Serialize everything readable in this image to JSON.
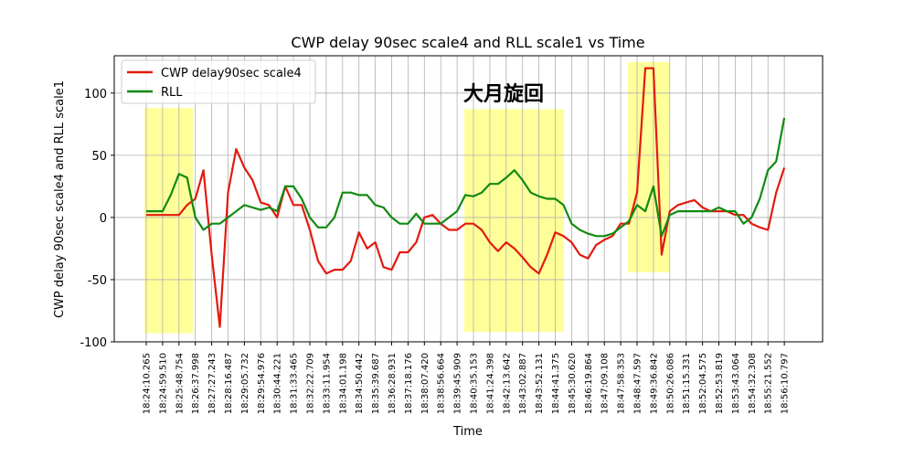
{
  "chart_data": {
    "type": "line",
    "title": "CWP delay 90sec scale4 and RLL scale1 vs Time",
    "x_label": "Time",
    "y_label": "CWP delay 90sec scale4 and RLL scale1",
    "x": [
      "18:24:10.265",
      "18:24:34.888",
      "18:24:59.510",
      "18:25:24.132",
      "18:25:48.754",
      "18:26:13.376",
      "18:26:37.998",
      "18:27:02.621",
      "18:27:27.243",
      "18:27:51.865",
      "18:28:16.487",
      "18:28:41.110",
      "18:29:05.732",
      "18:29:30.354",
      "18:29:54.976",
      "18:30:19.599",
      "18:30:44.221",
      "18:31:08.843",
      "18:31:33.465",
      "18:31:58.087",
      "18:32:22.709",
      "18:32:47.332",
      "18:33:11.954",
      "18:33:36.576",
      "18:34:01.198",
      "18:34:25.820",
      "18:34:50.442",
      "18:35:15.065",
      "18:35:39.687",
      "18:36:04.309",
      "18:36:28.931",
      "18:36:53.554",
      "18:37:18.176",
      "18:37:42.798",
      "18:38:07.420",
      "18:38:32.042",
      "18:38:56.664",
      "18:39:21.287",
      "18:39:45.909",
      "18:40:10.531",
      "18:40:35.153",
      "18:40:59.776",
      "18:41:24.398",
      "18:41:49.020",
      "18:42:13.642",
      "18:42:38.265",
      "18:43:02.887",
      "18:43:27.509",
      "18:43:52.131",
      "18:44:16.753",
      "18:44:41.375",
      "18:45:05.998",
      "18:45:30.620",
      "18:45:55.242",
      "18:46:19.864",
      "18:46:44.486",
      "18:47:09.108",
      "18:47:33.731",
      "18:47:58.353",
      "18:48:22.975",
      "18:48:47.597",
      "18:49:12.220",
      "18:49:36.842",
      "18:50:01.464",
      "18:50:26.086",
      "18:50:50.709",
      "18:51:15.331",
      "18:51:39.953",
      "18:52:04.575",
      "18:52:29.197",
      "18:52:53.819",
      "18:53:18.442",
      "18:53:43.064",
      "18:54:07.686",
      "18:54:32.308",
      "18:54:56.930",
      "18:55:21.552",
      "18:55:46.175",
      "18:56:10.797"
    ],
    "series": [
      {
        "name": "CWP delay90sec scale4",
        "color": "#e31a0e",
        "values": [
          2,
          2,
          2,
          2,
          2,
          10,
          15,
          38,
          -30,
          -88,
          20,
          55,
          40,
          30,
          12,
          10,
          0,
          25,
          10,
          10,
          -10,
          -35,
          -45,
          -42,
          -42,
          -35,
          -12,
          -25,
          -20,
          -40,
          -42,
          -28,
          -28,
          -20,
          0,
          2,
          -5,
          -10,
          -10,
          -5,
          -5,
          -10,
          -20,
          -27,
          -20,
          -25,
          -32,
          -40,
          -45,
          -30,
          -12,
          -15,
          -20,
          -30,
          -33,
          -22,
          -18,
          -15,
          -5,
          -5,
          20,
          120,
          120,
          -30,
          5,
          10,
          12,
          14,
          8,
          5,
          5,
          5,
          2,
          2,
          -5,
          -8,
          -10,
          20,
          40
        ]
      },
      {
        "name": "RLL",
        "color": "#118a11",
        "values": [
          5,
          5,
          5,
          18,
          35,
          32,
          0,
          -10,
          -5,
          -5,
          0,
          5,
          10,
          8,
          6,
          8,
          5,
          25,
          25,
          15,
          0,
          -8,
          -8,
          0,
          20,
          20,
          18,
          18,
          10,
          8,
          0,
          -5,
          -5,
          3,
          -5,
          -5,
          -5,
          0,
          5,
          18,
          17,
          20,
          27,
          27,
          32,
          38,
          30,
          20,
          17,
          15,
          15,
          10,
          -5,
          -10,
          -13,
          -15,
          -15,
          -13,
          -8,
          -3,
          10,
          5,
          25,
          -15,
          2,
          5,
          5,
          5,
          5,
          5,
          8,
          5,
          5,
          -5,
          0,
          15,
          38,
          45,
          80
        ]
      }
    ],
    "xlim": [
      "18:22:34.000",
      "18:58:06.000"
    ],
    "xticks": [
      "18:24:10.265",
      "18:24:59.510",
      "18:25:48.754",
      "18:26:37.998",
      "18:27:27.243",
      "18:28:16.487",
      "18:29:05.732",
      "18:29:54.976",
      "18:30:44.221",
      "18:31:33.465",
      "18:32:22.709",
      "18:33:11.954",
      "18:34:01.198",
      "18:34:50.442",
      "18:35:39.687",
      "18:36:28.931",
      "18:37:18.176",
      "18:38:07.420",
      "18:38:56.664",
      "18:39:45.909",
      "18:40:35.153",
      "18:41:24.398",
      "18:42:13.642",
      "18:43:02.887",
      "18:43:52.131",
      "18:44:41.375",
      "18:45:30.620",
      "18:46:19.864",
      "18:47:09.108",
      "18:47:58.353",
      "18:48:47.597",
      "18:49:36.842",
      "18:50:26.086",
      "18:51:15.331",
      "18:52:04.575",
      "18:52:53.819",
      "18:53:43.064",
      "18:54:32.308",
      "18:55:21.552",
      "18:56:10.797"
    ],
    "ylim": [
      -100,
      130
    ],
    "yticks": [
      -100,
      -50,
      0,
      50,
      100
    ],
    "grid": true,
    "legend": "upper left",
    "highlight_color": "#ffff00",
    "highlights": [
      {
        "x0": "18:24:05.000",
        "x1": "18:26:30.600",
        "y0": -93,
        "y1": 88
      },
      {
        "x0": "18:40:07.600",
        "x1": "18:45:07.500",
        "y0": -92,
        "y1": 87
      },
      {
        "x0": "18:48:20.100",
        "x1": "18:50:26.600",
        "y0": -44,
        "y1": 125
      }
    ],
    "annotation": {
      "text": "大月旋回",
      "color": "#f07800"
    }
  }
}
